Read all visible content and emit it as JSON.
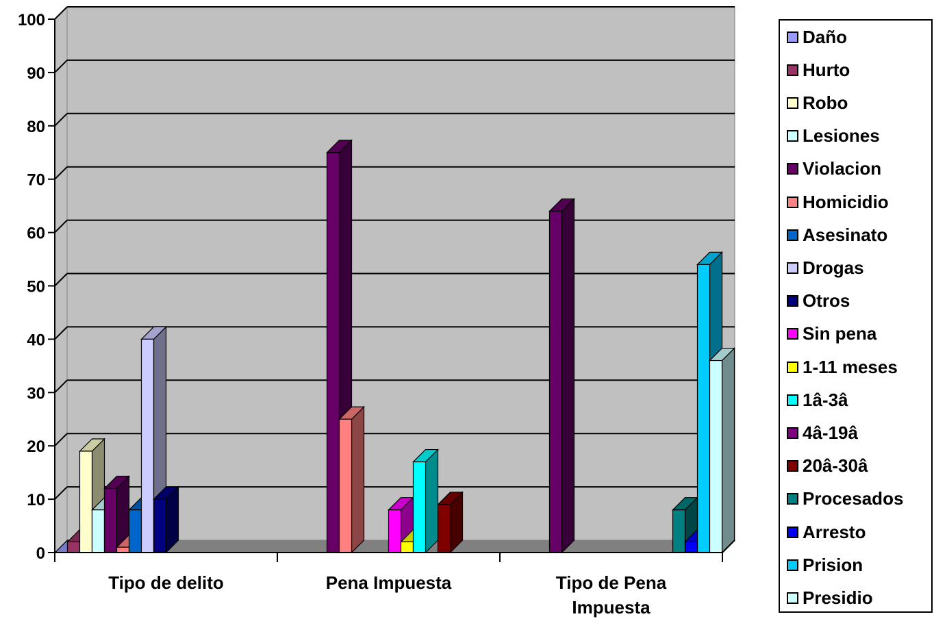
{
  "chart_data": {
    "type": "bar",
    "title": "",
    "xlabel": "",
    "ylabel": "",
    "ylim": [
      0,
      100
    ],
    "yticks": [
      "0",
      "10",
      "20",
      "30",
      "40",
      "50",
      "60",
      "70",
      "80",
      "90",
      "100"
    ],
    "grid": true,
    "legend_position": "right",
    "categories": [
      "Tipo de delito",
      "Pena Impuesta",
      "Tipo de Pena Impuesta"
    ],
    "series": [
      {
        "name": "Daño",
        "color": "#9999FF",
        "values": [
          0,
          null,
          null
        ]
      },
      {
        "name": "Hurto",
        "color": "#993366",
        "values": [
          2,
          null,
          null
        ]
      },
      {
        "name": "Robo",
        "color": "#FFFFCC",
        "values": [
          19,
          null,
          null
        ]
      },
      {
        "name": "Lesiones",
        "color": "#CCFFFF",
        "values": [
          8,
          null,
          null
        ]
      },
      {
        "name": "Violacion",
        "color": "#660066",
        "values": [
          12,
          75,
          64
        ]
      },
      {
        "name": "Homicidio",
        "color": "#FF8080",
        "values": [
          1,
          25,
          null
        ]
      },
      {
        "name": "Asesinato",
        "color": "#0066CC",
        "values": [
          8,
          null,
          null
        ]
      },
      {
        "name": "Drogas",
        "color": "#CCCCFF",
        "values": [
          40,
          null,
          null
        ]
      },
      {
        "name": "Otros",
        "color": "#000080",
        "values": [
          10,
          null,
          null
        ]
      },
      {
        "name": "Sin pena",
        "color": "#FF00FF",
        "values": [
          null,
          8,
          null
        ]
      },
      {
        "name": "1-11 meses",
        "color": "#FFFF00",
        "values": [
          null,
          2,
          null
        ]
      },
      {
        "name": "1â-3â",
        "color": "#00FFFF",
        "values": [
          null,
          17,
          null
        ]
      },
      {
        "name": "4â-19â",
        "color": "#800080",
        "values": [
          null,
          null,
          null
        ]
      },
      {
        "name": "20â-30â",
        "color": "#800000",
        "values": [
          null,
          9,
          null
        ]
      },
      {
        "name": "Procesados",
        "color": "#008080",
        "values": [
          null,
          null,
          8
        ]
      },
      {
        "name": "Arresto",
        "color": "#0000FF",
        "values": [
          null,
          null,
          2
        ]
      },
      {
        "name": "Prision",
        "color": "#00CCFF",
        "values": [
          null,
          null,
          54
        ]
      },
      {
        "name": "Presidio",
        "color": "#CCFFFF",
        "values": [
          null,
          null,
          36
        ]
      }
    ],
    "category_label_lines": [
      [
        "Tipo de delito"
      ],
      [
        "Pena Impuesta"
      ],
      [
        "Tipo de Pena",
        "Impuesta"
      ]
    ]
  }
}
